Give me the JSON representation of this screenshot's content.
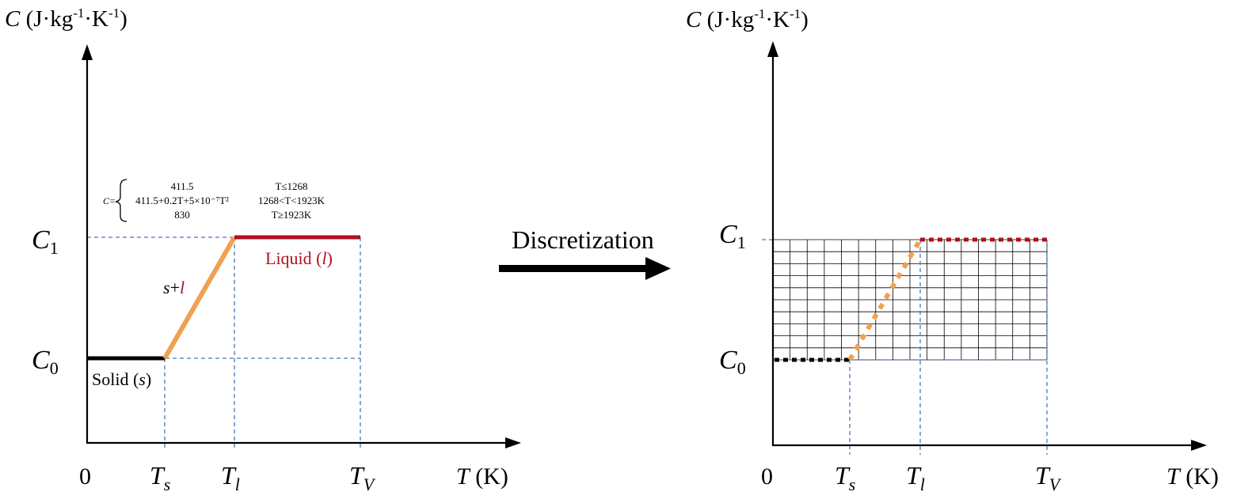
{
  "colors": {
    "solid": "#000000",
    "mushy": "#f0a050",
    "liquid": "#b01020",
    "guide": "#4a78b0",
    "grid": "#000000",
    "axis": "#000000"
  },
  "left": {
    "y_axis_label": {
      "var": "C",
      "unit_open": " (J·kg",
      "exp1": "-1",
      "mid": "·K",
      "exp2": "-1",
      "close": ")"
    },
    "x_axis_label": {
      "var": "T",
      "unit": " (K)"
    },
    "origin": "0",
    "c1": {
      "main": "C",
      "sub": "1"
    },
    "c0": {
      "main": "C",
      "sub": "0"
    },
    "ts": {
      "main": "T",
      "sub": "s"
    },
    "tl": {
      "main": "T",
      "sub": "l"
    },
    "tv": {
      "main": "T",
      "sub": "V"
    },
    "solid_label": {
      "text": "Solid (",
      "var": "s",
      "close": ")"
    },
    "liquid_label": {
      "text": "Liquid (",
      "var": "l",
      "close": ")"
    },
    "mushy_label": {
      "a": "s",
      "plus": "+",
      "b": "l"
    },
    "equation": {
      "lhs": "C=",
      "rows": [
        {
          "expr": "411.5",
          "cond": "T≤1268"
        },
        {
          "expr": "411.5+0.2T+5×10⁻⁷T²",
          "cond": "1268<T<1923K"
        },
        {
          "expr": "830",
          "cond": "T≥1923K"
        }
      ]
    }
  },
  "arrow_label": "Discretization",
  "right": {
    "y_axis_label": {
      "var": "C",
      "unit_open": " (J·kg",
      "exp1": "-1",
      "mid": "·K",
      "exp2": "-1",
      "close": ")"
    },
    "x_axis_label": {
      "var": "T",
      "unit": " (K)"
    },
    "origin": "0",
    "c1": {
      "main": "C",
      "sub": "1"
    },
    "c0": {
      "main": "C",
      "sub": "0"
    },
    "ts": {
      "main": "T",
      "sub": "s"
    },
    "tl": {
      "main": "T",
      "sub": "l"
    },
    "tv": {
      "main": "T",
      "sub": "V"
    },
    "grid": {
      "columns": 16,
      "rows": 10
    }
  }
}
